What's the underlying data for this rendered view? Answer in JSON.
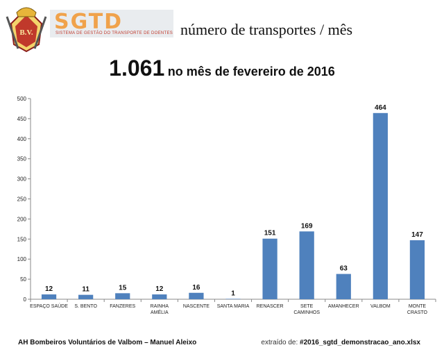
{
  "header": {
    "logo_text": "SGTD",
    "logo_subtitle": "SISTEMA DE GESTÃO DO TRANSPORTE DE DOENTES",
    "crest_text": "B.V.",
    "title": "número de transportes / mês"
  },
  "headline": {
    "total": "1.061",
    "caption": "no mês de fevereiro de 2016"
  },
  "chart_data": {
    "type": "bar",
    "categories": [
      "ESPAÇO SAÚDE",
      "S. BENTO",
      "FANZERES",
      "RAINHA AMÉLIA",
      "NASCENTE",
      "SANTA MARIA",
      "RENASCER",
      "SETE CAMINHOS",
      "AMANHECER",
      "VALBOM",
      "MONTE CRASTO"
    ],
    "category_lines": [
      [
        "ESPAÇO SAÚDE"
      ],
      [
        "S. BENTO"
      ],
      [
        "FANZERES"
      ],
      [
        "RAINHA",
        "AMÉLIA"
      ],
      [
        "NASCENTE"
      ],
      [
        "SANTA MARIA"
      ],
      [
        "RENASCER"
      ],
      [
        "SETE",
        "CAMINHOS"
      ],
      [
        "AMANHECER"
      ],
      [
        "VALBOM"
      ],
      [
        "MONTE",
        "CRASTO"
      ]
    ],
    "values": [
      12,
      11,
      15,
      12,
      16,
      1,
      151,
      169,
      63,
      464,
      147
    ],
    "ylim": [
      0,
      500
    ],
    "yticks": [
      0,
      50,
      100,
      150,
      200,
      250,
      300,
      350,
      400,
      450,
      500
    ],
    "title": "",
    "xlabel": "",
    "ylabel": "",
    "bar_color": "#4f81bd",
    "grid": false
  },
  "footer": {
    "left": "AH Bombeiros Voluntários de Valbom – Manuel Aleixo",
    "right_prefix": "extraído de:",
    "right_file": "#2016_sgtd_demonstracao_ano.xlsx"
  }
}
